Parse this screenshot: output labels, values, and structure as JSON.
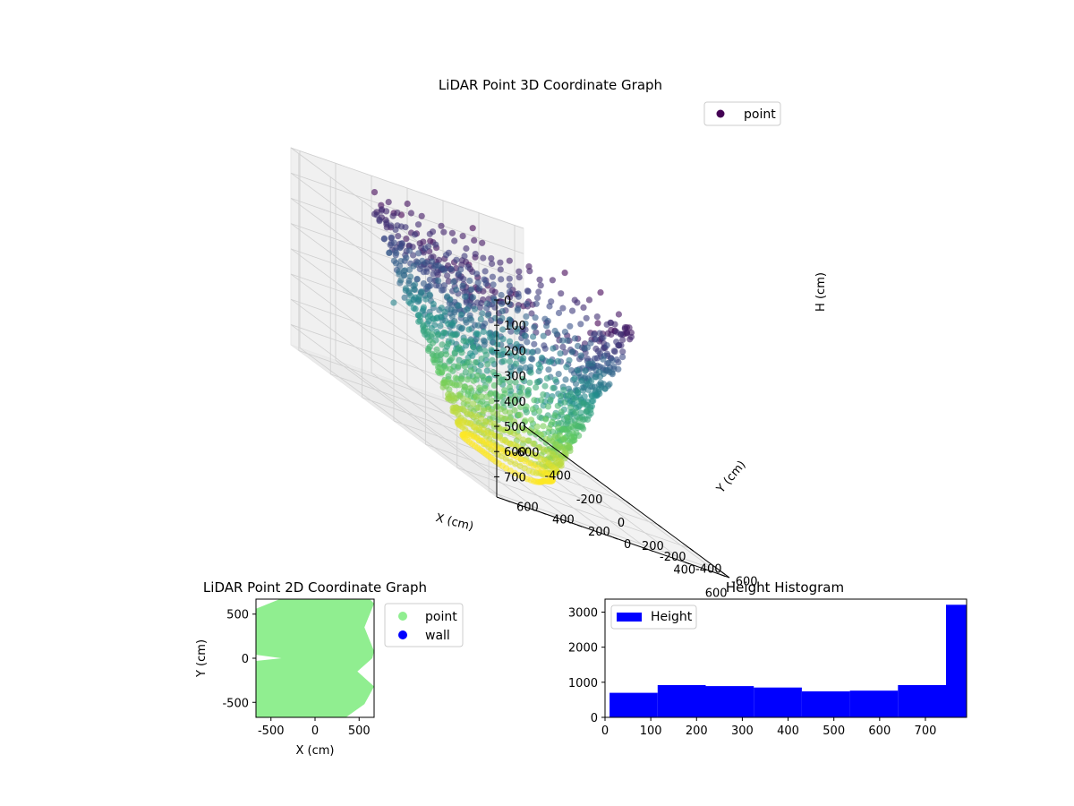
{
  "chart_data": [
    {
      "type": "scatter",
      "projection": "3d",
      "title": "LiDAR Point 3D Coordinate Graph",
      "xlabel": "X (cm)",
      "ylabel": "Y (cm)",
      "zlabel": "H (cm)",
      "xlim": [
        -650,
        650
      ],
      "ylim": [
        -650,
        650
      ],
      "zlim": [
        780,
        0
      ],
      "xticks": [
        -600,
        -400,
        -200,
        0,
        200,
        400,
        600
      ],
      "yticks": [
        600,
        400,
        200,
        0,
        -200,
        -400,
        -600
      ],
      "zticks": [
        0,
        100,
        200,
        300,
        400,
        500,
        600,
        700
      ],
      "z_inverted": true,
      "colormap": "viridis",
      "grid": true,
      "legend": {
        "placement": "top-right",
        "entries": [
          {
            "label": "point",
            "color": "#440154"
          }
        ]
      }
    },
    {
      "type": "scatter",
      "title": "LiDAR Point 2D Coordinate Graph",
      "xlabel": "X (cm)",
      "ylabel": "Y (cm)",
      "xlim": [
        -670,
        670
      ],
      "ylim": [
        -670,
        670
      ],
      "xticks": [
        -500,
        0,
        500
      ],
      "yticks": [
        500,
        0,
        -500
      ],
      "series": [
        {
          "name": "point",
          "color": "#90ee90"
        },
        {
          "name": "wall",
          "color": "#0000ff"
        }
      ],
      "legend": {
        "placement": "outside-right"
      }
    },
    {
      "type": "bar",
      "histogram": true,
      "title": "Height Histogram",
      "xlabel": "",
      "ylabel": "",
      "xlim": [
        0,
        790
      ],
      "ylim": [
        0,
        3370
      ],
      "xticks": [
        0,
        100,
        200,
        300,
        400,
        500,
        600,
        700
      ],
      "yticks": [
        0,
        1000,
        2000,
        3000
      ],
      "bin_edges": [
        10,
        115,
        220,
        325,
        430,
        535,
        640,
        745,
        790
      ],
      "values": [
        700,
        920,
        890,
        850,
        740,
        760,
        920,
        3210
      ],
      "color": "#0000ff",
      "series": [
        {
          "name": "Height"
        }
      ],
      "legend": {
        "placement": "top-left"
      }
    }
  ]
}
